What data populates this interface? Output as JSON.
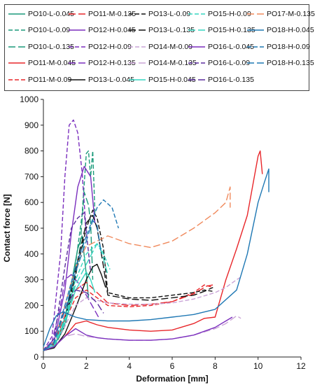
{
  "chart_data": {
    "type": "line",
    "title": "",
    "xlabel": "Deformation [mm]",
    "ylabel": "Contact force [N]",
    "xlim": [
      0,
      12
    ],
    "ylim": [
      0,
      1000
    ],
    "xticks": [
      0,
      2,
      4,
      6,
      8,
      10,
      12
    ],
    "yticks": [
      0,
      100,
      200,
      300,
      400,
      500,
      600,
      700,
      800,
      900,
      1000
    ],
    "grid": false,
    "legend_position": "top",
    "series": [
      {
        "name": "PO10-L-0.045",
        "color": "#1a9a7a",
        "dash": "solid",
        "x": [
          0,
          0.4,
          0.8,
          1.1,
          1.4,
          1.6,
          1.8,
          2.0,
          2.1
        ],
        "y": [
          25,
          35,
          90,
          190,
          330,
          420,
          470,
          320,
          230
        ]
      },
      {
        "name": "PO10-L-0.09",
        "color": "#1a9a7a",
        "dash": "dash",
        "x": [
          0,
          0.5,
          1.0,
          1.4,
          1.8,
          2.0,
          2.1,
          2.2,
          2.3,
          2.4
        ],
        "y": [
          25,
          40,
          130,
          300,
          550,
          790,
          800,
          700,
          800,
          560
        ]
      },
      {
        "name": "PO10-L-0.135",
        "color": "#1a9a7a",
        "dash": "longdash",
        "x": [
          0,
          0.5,
          1.0,
          1.4,
          1.7,
          1.9,
          2.1,
          2.2,
          2.3
        ],
        "y": [
          25,
          40,
          120,
          260,
          420,
          640,
          590,
          520,
          300
        ]
      },
      {
        "name": "PO11-M-0.045",
        "color": "#e8262a",
        "dash": "solid",
        "x": [
          0,
          0.5,
          1.0,
          1.5,
          2.0,
          2.5,
          3.0,
          4.0,
          5.0,
          6.0,
          7.0,
          7.5,
          8.0,
          8.5,
          9.0,
          9.5,
          10.0,
          10.1,
          10.2
        ],
        "y": [
          25,
          40,
          80,
          130,
          140,
          125,
          115,
          105,
          100,
          105,
          130,
          150,
          155,
          300,
          420,
          550,
          780,
          800,
          710
        ]
      },
      {
        "name": "PO11-M-0.09",
        "color": "#e8262a",
        "dash": "dash",
        "x": [
          0,
          0.5,
          1.0,
          1.5,
          2.0,
          2.5,
          3.0,
          4.0,
          5.0,
          6.0,
          7.0,
          7.5,
          7.9
        ],
        "y": [
          25,
          45,
          140,
          230,
          260,
          230,
          200,
          195,
          200,
          215,
          250,
          280,
          270
        ]
      },
      {
        "name": "PO11-M-0.135",
        "color": "#e8262a",
        "dash": "longdash",
        "x": [
          0,
          0.5,
          1.0,
          1.5,
          2.0,
          2.5,
          3.0,
          4.0,
          5.0,
          6.0,
          7.0,
          7.6,
          7.9
        ],
        "y": [
          25,
          50,
          160,
          260,
          290,
          250,
          210,
          200,
          205,
          215,
          245,
          275,
          280
        ]
      },
      {
        "name": "PO12-H-0.045",
        "color": "#7b2fbe",
        "dash": "solid",
        "x": [
          0,
          0.5,
          1.0,
          1.3,
          1.6,
          1.9,
          2.2,
          2.4
        ],
        "y": [
          25,
          60,
          260,
          480,
          660,
          740,
          700,
          520
        ]
      },
      {
        "name": "PO12-H-0.09",
        "color": "#7b2fbe",
        "dash": "dash",
        "x": [
          0,
          0.4,
          0.8,
          1.0,
          1.2,
          1.4,
          1.6,
          1.8,
          2.0
        ],
        "y": [
          25,
          80,
          400,
          700,
          900,
          920,
          870,
          720,
          480
        ]
      },
      {
        "name": "PO12-H-0.135",
        "color": "#7b2fbe",
        "dash": "longdash",
        "x": [
          0,
          0.4,
          0.8,
          1.0,
          1.3,
          1.6,
          2.0,
          2.4,
          2.6
        ],
        "y": [
          25,
          60,
          200,
          300,
          320,
          290,
          240,
          180,
          150
        ]
      },
      {
        "name": "PO13-L-0.045",
        "color": "#111111",
        "dash": "solid",
        "x": [
          0,
          0.5,
          1.0,
          1.5,
          2.0,
          2.3,
          2.5,
          2.7,
          2.9
        ],
        "y": [
          25,
          35,
          90,
          190,
          300,
          350,
          360,
          320,
          270
        ]
      },
      {
        "name": "PO13-L-0.09",
        "color": "#111111",
        "dash": "dash",
        "x": [
          0,
          0.5,
          1.0,
          1.5,
          2.0,
          2.3,
          2.5,
          2.8,
          3.0,
          4.0,
          5.0,
          6.0,
          7.0,
          7.5,
          7.9
        ],
        "y": [
          25,
          40,
          120,
          320,
          500,
          570,
          540,
          420,
          250,
          230,
          230,
          240,
          250,
          260,
          255
        ]
      },
      {
        "name": "PO13-L-0.135",
        "color": "#111111",
        "dash": "longdash",
        "x": [
          0,
          0.5,
          1.0,
          1.5,
          2.0,
          2.3,
          2.5,
          2.8,
          3.0,
          4.0,
          5.0,
          6.0,
          7.0,
          7.5,
          7.9
        ],
        "y": [
          25,
          45,
          140,
          340,
          520,
          550,
          500,
          350,
          240,
          225,
          220,
          230,
          240,
          255,
          270
        ]
      },
      {
        "name": "PO14-M-0.09",
        "color": "#c9a3d6",
        "dash": "dash",
        "x": [
          0,
          0.5,
          1.0,
          1.5,
          2.0,
          3.0,
          4.0,
          5.0,
          6.0,
          7.0,
          8.0,
          8.5,
          9.0,
          9.2
        ],
        "y": [
          25,
          45,
          120,
          200,
          230,
          210,
          205,
          205,
          210,
          225,
          250,
          270,
          300,
          310
        ]
      },
      {
        "name": "PO14-M-0.135",
        "color": "#c9a3d6",
        "dash": "longdash",
        "x": [
          0,
          0.5,
          1.0,
          1.5,
          2.0,
          3.0,
          4.0,
          5.0,
          6.0,
          7.0,
          8.0,
          8.5,
          9.0,
          9.2
        ],
        "y": [
          25,
          40,
          80,
          90,
          80,
          70,
          65,
          65,
          70,
          85,
          110,
          130,
          160,
          150
        ]
      },
      {
        "name": "PO15-H-0.045",
        "color": "#35d6c0",
        "dash": "solid",
        "x": [
          0,
          0.5,
          1.0,
          1.5,
          2.0,
          2.2,
          2.4
        ],
        "y": [
          25,
          40,
          130,
          260,
          330,
          300,
          250
        ]
      },
      {
        "name": "PO15-H-0.09",
        "color": "#35d6c0",
        "dash": "dash",
        "x": [
          0,
          0.5,
          1.0,
          1.5,
          2.0,
          2.5,
          2.7,
          2.9,
          3.1
        ],
        "y": [
          25,
          50,
          150,
          300,
          400,
          440,
          420,
          380,
          340
        ]
      },
      {
        "name": "PO15-H-0.135",
        "color": "#35d6c0",
        "dash": "longdash",
        "x": [
          0,
          0.5,
          1.0,
          1.5,
          2.0,
          2.5,
          2.7,
          3.0
        ],
        "y": [
          25,
          45,
          140,
          280,
          360,
          440,
          410,
          320
        ]
      },
      {
        "name": "PO16-L-0.045",
        "color": "#7b2fbe",
        "dash": "solid",
        "x": [
          0,
          0.5,
          1.0,
          1.5,
          2.0,
          2.5,
          3.0,
          4.0,
          5.0,
          6.0,
          7.0,
          7.5,
          8.0,
          8.5,
          8.8
        ],
        "y": [
          25,
          40,
          80,
          110,
          85,
          75,
          70,
          65,
          65,
          70,
          85,
          100,
          115,
          140,
          155
        ]
      },
      {
        "name": "PO16-L-0.09",
        "color": "#5b2d9e",
        "dash": "dash",
        "x": [
          0,
          0.5,
          1.0,
          1.3,
          1.6,
          1.9,
          2.2
        ],
        "y": [
          25,
          70,
          350,
          500,
          540,
          560,
          330
        ]
      },
      {
        "name": "PO16-L-0.135",
        "color": "#5b2d9e",
        "dash": "longdash",
        "x": [
          0,
          0.5,
          1.0,
          1.5,
          2.0,
          2.5,
          2.8
        ],
        "y": [
          25,
          55,
          190,
          260,
          250,
          210,
          170
        ]
      },
      {
        "name": "PO17-M-0.135",
        "color": "#f08a5d",
        "dash": "longdash",
        "x": [
          0,
          0.5,
          1.0,
          1.5,
          2.0,
          3.0,
          4.0,
          5.0,
          6.0,
          7.0,
          8.0,
          8.5,
          8.7,
          8.7
        ],
        "y": [
          25,
          60,
          200,
          350,
          430,
          470,
          440,
          425,
          450,
          500,
          560,
          600,
          660,
          580
        ]
      },
      {
        "name": "PO18-H-0.045",
        "color": "#1f78b4",
        "dash": "solid",
        "x": [
          0,
          0.3,
          0.6,
          0.9,
          1.2,
          1.5,
          2.0,
          3.0,
          4.0,
          5.0,
          6.0,
          7.0,
          8.0,
          9.0,
          9.5,
          10.0,
          10.3,
          10.5,
          10.5
        ],
        "y": [
          40,
          110,
          160,
          175,
          165,
          155,
          145,
          140,
          140,
          145,
          155,
          165,
          185,
          260,
          400,
          600,
          680,
          730,
          640
        ]
      },
      {
        "name": "PO18-H-0.09",
        "color": "#1f78b4",
        "dash": "dash",
        "x": [
          0,
          0.5,
          1.0,
          1.5,
          2.0,
          2.5,
          2.8,
          3.2,
          3.5
        ],
        "y": [
          25,
          60,
          200,
          350,
          470,
          580,
          610,
          580,
          500
        ]
      },
      {
        "name": "PO18-H-0.135",
        "color": "#1f78b4",
        "dash": "longdash",
        "x": [
          0,
          0.5,
          1.0,
          1.5,
          2.0,
          2.3,
          2.5,
          2.7
        ],
        "y": [
          25,
          55,
          180,
          330,
          450,
          530,
          510,
          400
        ]
      }
    ]
  }
}
